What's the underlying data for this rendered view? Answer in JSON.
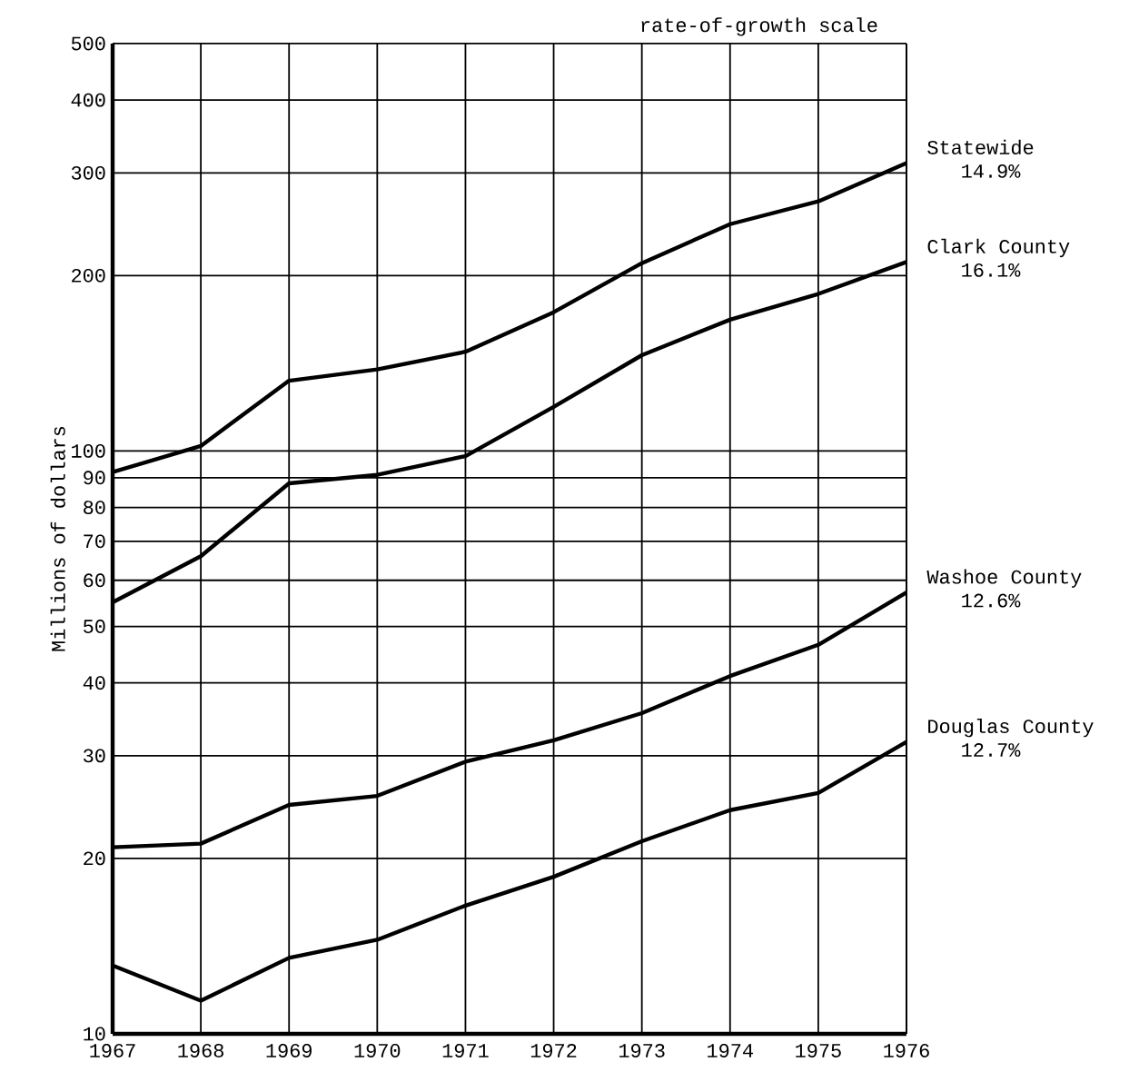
{
  "chart_data": {
    "type": "line",
    "ylabel": "Millions of dollars",
    "log": "y",
    "grid": true,
    "line_style": "solid",
    "x": [
      1967,
      1968,
      1969,
      1970,
      1971,
      1972,
      1973,
      1974,
      1975,
      1976
    ],
    "xlim": [
      1967,
      1976
    ],
    "xticks": [
      1967,
      1968,
      1969,
      1970,
      1971,
      1972,
      1973,
      1974,
      1975,
      1976
    ],
    "ylim": [
      10,
      500
    ],
    "yticks": [
      10,
      20,
      30,
      40,
      50,
      60,
      70,
      80,
      90,
      100,
      200,
      300,
      400,
      500
    ],
    "series": [
      {
        "name": "Statewide",
        "color": "#000000",
        "values": [
          92,
          102,
          132,
          138,
          148,
          173,
          210,
          245,
          268,
          312
        ]
      },
      {
        "name": "Clark County",
        "color": "#000000",
        "values": [
          55,
          66,
          88,
          91,
          98,
          119,
          146,
          168,
          186,
          211
        ]
      },
      {
        "name": "Washoe County",
        "color": "#000000",
        "values": [
          20.9,
          21.2,
          24.7,
          25.6,
          29.3,
          31.9,
          35.5,
          41.1,
          46.5,
          57.2
        ]
      },
      {
        "name": "Douglas County",
        "color": "#000000",
        "values": [
          13.1,
          11.4,
          13.5,
          14.5,
          16.6,
          18.6,
          21.4,
          24.2,
          25.9,
          31.7
        ]
      }
    ],
    "annotations": [
      "rate-of-growth scale",
      "14.9%",
      "16.1%",
      "12.6%",
      "12.7%"
    ]
  }
}
